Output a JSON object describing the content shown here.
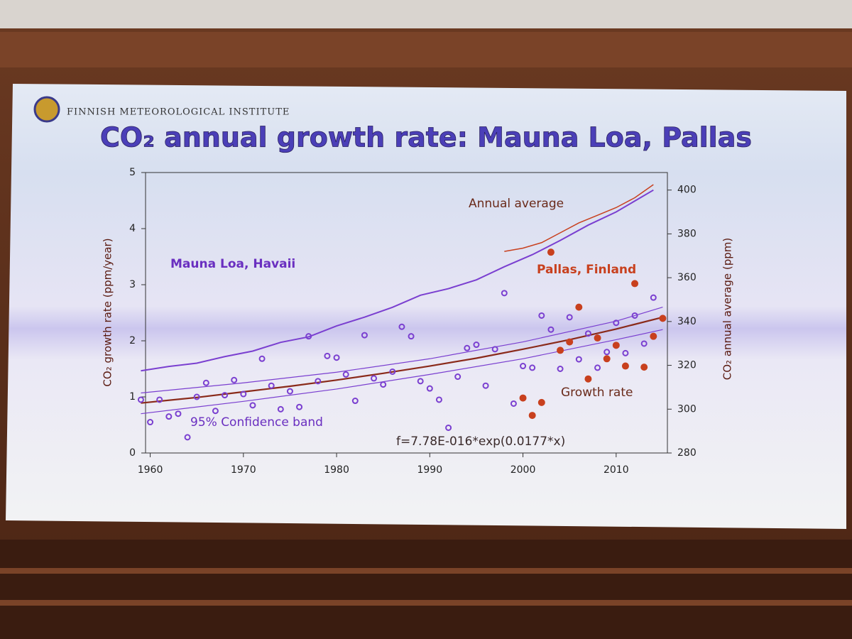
{
  "header": {
    "institute": "FINNISH METEOROLOGICAL INSTITUTE"
  },
  "chart_data": {
    "type": "combo",
    "title": "CO₂ annual growth rate: Mauna Loa, Pallas",
    "y_label": "CO₂ growth rate (ppm/year)",
    "y2_label": "CO₂ annual average (ppm)",
    "xlim": [
      1959.5,
      2015.5
    ],
    "ylim": [
      0,
      5
    ],
    "y2lim": [
      280,
      408
    ],
    "xticks": [
      1960,
      1970,
      1980,
      1990,
      2000,
      2010
    ],
    "yticks": [
      0,
      1,
      2,
      3,
      4,
      5
    ],
    "y2ticks": [
      280,
      300,
      320,
      340,
      360,
      380,
      400
    ],
    "grid": false,
    "annotations": [
      "Annual average",
      "Growth rate",
      "95% Confidence band",
      "f=7.78E-016*exp(0.0177*x)"
    ],
    "series": [
      {
        "name": "Mauna Loa, Havaii",
        "type": "scatter",
        "marker": "open",
        "color": "#7a3fd0",
        "x": [
          1959,
          1960,
          1961,
          1962,
          1963,
          1964,
          1965,
          1966,
          1967,
          1968,
          1969,
          1970,
          1971,
          1972,
          1973,
          1974,
          1975,
          1976,
          1977,
          1978,
          1979,
          1980,
          1981,
          1982,
          1983,
          1984,
          1985,
          1986,
          1987,
          1988,
          1989,
          1990,
          1991,
          1992,
          1993,
          1994,
          1995,
          1996,
          1997,
          1998,
          1999,
          2000,
          2001,
          2002,
          2003,
          2004,
          2005,
          2006,
          2007,
          2008,
          2009,
          2010,
          2011,
          2012,
          2013,
          2014
        ],
        "values": [
          0.95,
          0.55,
          0.95,
          0.65,
          0.7,
          0.28,
          1.0,
          1.25,
          0.75,
          1.03,
          1.3,
          1.05,
          0.85,
          1.68,
          1.2,
          0.78,
          1.1,
          0.82,
          2.08,
          1.28,
          1.73,
          1.7,
          1.4,
          0.93,
          2.1,
          1.33,
          1.22,
          1.45,
          2.25,
          2.08,
          1.28,
          1.15,
          0.95,
          0.45,
          1.36,
          1.87,
          1.93,
          1.2,
          1.85,
          2.85,
          0.88,
          1.55,
          1.52,
          2.45,
          2.2,
          1.5,
          2.42,
          1.67,
          2.13,
          1.52,
          1.8,
          2.32,
          1.78,
          2.45,
          1.95,
          2.77
        ]
      },
      {
        "name": "Pallas, Finland",
        "type": "scatter",
        "marker": "filled",
        "color": "#c8401e",
        "x": [
          2000,
          2001,
          2002,
          2003,
          2004,
          2005,
          2006,
          2007,
          2008,
          2009,
          2010,
          2011,
          2012,
          2013,
          2014,
          2015
        ],
        "values": [
          0.98,
          0.67,
          0.9,
          3.58,
          1.83,
          1.98,
          2.6,
          1.32,
          2.05,
          1.68,
          1.92,
          1.55,
          3.02,
          1.53,
          2.08,
          2.4
        ]
      },
      {
        "type": "line",
        "axis": "y2",
        "color": "#7a3fd0",
        "width": 2,
        "x": [
          1959,
          1962,
          1965,
          1968,
          1971,
          1974,
          1977,
          1980,
          1983,
          1986,
          1989,
          1992,
          1995,
          1998,
          2001,
          2004,
          2007,
          2010,
          2014
        ],
        "values": [
          317.5,
          319.5,
          321,
          324,
          326.5,
          330.5,
          333,
          338,
          342,
          346.5,
          352,
          355,
          359,
          365,
          370.5,
          377,
          384,
          390,
          400
        ]
      },
      {
        "type": "line",
        "axis": "y2",
        "color": "#c8401e",
        "width": 1.5,
        "x": [
          1998,
          2000,
          2002,
          2004,
          2006,
          2008,
          2010,
          2012,
          2014
        ],
        "values": [
          372,
          373.5,
          376,
          380.5,
          385,
          388.5,
          392,
          396.5,
          402.5
        ]
      },
      {
        "type": "line",
        "color": "#8a2a1a",
        "width": 2.2,
        "x": [
          1959,
          1965,
          1970,
          1975,
          1980,
          1985,
          1990,
          1995,
          2000,
          2005,
          2010,
          2015
        ],
        "values": [
          0.89,
          0.99,
          1.09,
          1.19,
          1.3,
          1.42,
          1.55,
          1.69,
          1.85,
          2.02,
          2.21,
          2.42
        ]
      },
      {
        "type": "line",
        "color": "#7a3fd0",
        "width": 1.2,
        "x": [
          1959,
          1970,
          1980,
          1990,
          2000,
          2010,
          2015
        ],
        "values": [
          1.07,
          1.25,
          1.44,
          1.68,
          1.98,
          2.35,
          2.6
        ]
      },
      {
        "type": "line",
        "color": "#7a3fd0",
        "width": 1.2,
        "x": [
          1959,
          1970,
          1980,
          1990,
          2000,
          2010,
          2015
        ],
        "values": [
          0.7,
          0.92,
          1.14,
          1.4,
          1.68,
          2.02,
          2.2
        ]
      }
    ]
  }
}
